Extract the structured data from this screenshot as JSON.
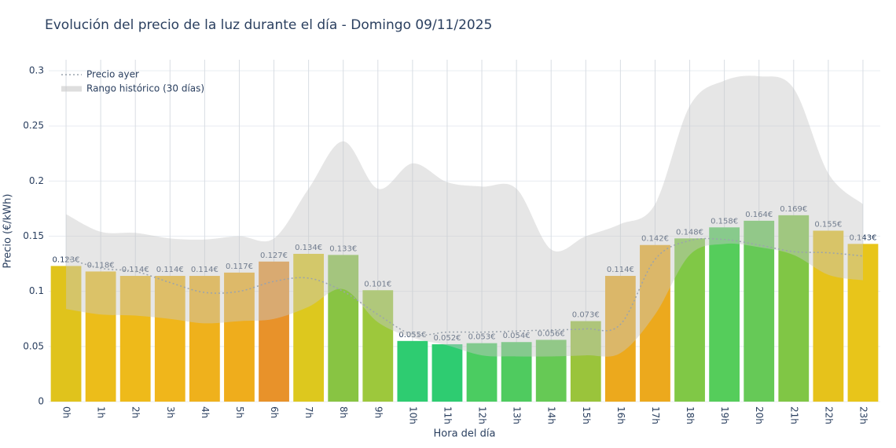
{
  "chart_data": {
    "type": "bar",
    "title": "Evolución del precio de la luz durante el día - Domingo 09/11/2025",
    "x_label": "Hora del día",
    "y_label": "Precio (€/kWh)",
    "categories": [
      "0h",
      "1h",
      "2h",
      "3h",
      "4h",
      "5h",
      "6h",
      "7h",
      "8h",
      "9h",
      "10h",
      "11h",
      "12h",
      "13h",
      "14h",
      "15h",
      "16h",
      "17h",
      "18h",
      "19h",
      "20h",
      "21h",
      "22h",
      "23h"
    ],
    "values": [
      0.123,
      0.118,
      0.114,
      0.114,
      0.114,
      0.117,
      0.127,
      0.134,
      0.133,
      0.101,
      0.055,
      0.052,
      0.053,
      0.054,
      0.056,
      0.073,
      0.114,
      0.142,
      0.148,
      0.158,
      0.164,
      0.169,
      0.155,
      0.143
    ],
    "value_labels": [
      "0.123€",
      "0.118€",
      "0.114€",
      "0.114€",
      "0.114€",
      "0.117€",
      "0.127€",
      "0.134€",
      "0.133€",
      "0.101€",
      "0.055€",
      "0.052€",
      "0.053€",
      "0.054€",
      "0.056€",
      "0.073€",
      "0.114€",
      "0.142€",
      "0.148€",
      "0.158€",
      "0.164€",
      "0.169€",
      "0.155€",
      "0.143€"
    ],
    "colors": [
      "#e0c31c",
      "#ecbd1a",
      "#eeba1a",
      "#f0b61b",
      "#efb11c",
      "#efad1c",
      "#e8922a",
      "#ddc81e",
      "#88c443",
      "#9dc83c",
      "#2ecc71",
      "#2ecc71",
      "#4bcc61",
      "#4fcb5f",
      "#66c955",
      "#9ac43b",
      "#eca91d",
      "#eca91d",
      "#80c846",
      "#55cd5b",
      "#66c957",
      "#80c645",
      "#e6c21b",
      "#e8c51a"
    ],
    "reference_line": {
      "name": "Precio ayer",
      "color": "#9aa3ad",
      "values": [
        0.13,
        0.121,
        0.118,
        0.108,
        0.099,
        0.1,
        0.109,
        0.112,
        0.1,
        0.079,
        0.061,
        0.063,
        0.063,
        0.064,
        0.065,
        0.066,
        0.07,
        0.129,
        0.146,
        0.147,
        0.142,
        0.136,
        0.135,
        0.132
      ]
    },
    "band": {
      "name": "Rango histórico (30 días)",
      "color": "#c8c8c8",
      "upper": [
        0.17,
        0.154,
        0.153,
        0.148,
        0.147,
        0.15,
        0.148,
        0.193,
        0.236,
        0.193,
        0.216,
        0.199,
        0.195,
        0.193,
        0.138,
        0.15,
        0.161,
        0.179,
        0.268,
        0.291,
        0.295,
        0.284,
        0.207,
        0.179
      ],
      "lower": [
        0.084,
        0.079,
        0.078,
        0.075,
        0.071,
        0.073,
        0.075,
        0.086,
        0.102,
        0.072,
        0.058,
        0.051,
        0.042,
        0.041,
        0.041,
        0.042,
        0.044,
        0.079,
        0.133,
        0.143,
        0.14,
        0.133,
        0.115,
        0.11
      ]
    },
    "ylim": [
      0,
      0.31
    ],
    "yticks": [
      0,
      0.05,
      0.1,
      0.15,
      0.2,
      0.25,
      0.3
    ],
    "grid": true
  }
}
